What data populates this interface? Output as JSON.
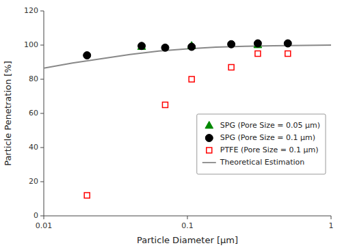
{
  "chart_data": {
    "type": "scatter",
    "x_label": "Particle Diameter [μm]",
    "y_label": "Particle Penetration [%]",
    "log": "x",
    "xlim": [
      0.01,
      1
    ],
    "xticks": [
      0.01,
      0.1,
      1
    ],
    "ylim": [
      0,
      120
    ],
    "yticks": [
      0,
      20,
      40,
      60,
      80,
      100,
      120
    ],
    "grid": false,
    "legend": "right",
    "series": [
      {
        "name": "SPG (Pore Size = 0.05 μm)",
        "type": "scatter",
        "marker": "triangle",
        "color": "#008800",
        "x": [
          0.048,
          0.107,
          0.309
        ],
        "values": [
          99.0,
          99.5,
          100.0
        ]
      },
      {
        "name": "SPG (Pore Size = 0.1 μm)",
        "type": "scatter",
        "marker": "circle",
        "color": "#000000",
        "x": [
          0.02,
          0.048,
          0.07,
          0.107,
          0.202,
          0.309,
          0.5
        ],
        "values": [
          94.0,
          99.5,
          98.5,
          99.0,
          100.5,
          101.0,
          101.0
        ]
      },
      {
        "name": "PTFE (Pore Size = 0.1 μm)",
        "type": "scatter",
        "marker": "square-open",
        "color": "#ff0000",
        "x": [
          0.02,
          0.07,
          0.107,
          0.202,
          0.309,
          0.5
        ],
        "values": [
          12.0,
          65.0,
          80.0,
          87.0,
          95.0,
          95.0
        ]
      },
      {
        "name": "Theoretical Estimation",
        "type": "line",
        "line_style": "solid",
        "color": "#888888",
        "x": [
          0.01,
          0.015848931924611134,
          0.025118864315095794,
          0.03981071705534973,
          0.06309573444801933,
          0.1,
          0.15848931924611134,
          0.25118864315095796,
          0.3981071705534972,
          0.6309573444801932,
          1
        ],
        "values": [
          86.5,
          89.5,
          92.0,
          94.5,
          96.5,
          97.8,
          98.8,
          99.3,
          99.6,
          99.8,
          100.0
        ]
      }
    ]
  }
}
